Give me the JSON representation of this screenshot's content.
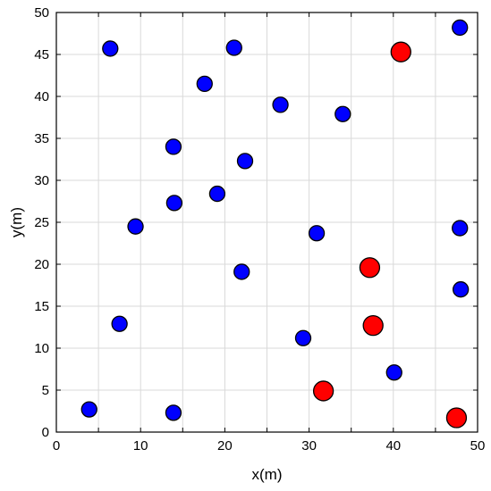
{
  "chart_data": {
    "type": "scatter",
    "xlabel": "x(m)",
    "ylabel": "y(m)",
    "xlim": [
      0,
      50
    ],
    "ylim": [
      0,
      50
    ],
    "x_ticks": [
      0,
      5,
      10,
      15,
      20,
      25,
      30,
      35,
      40,
      45,
      50
    ],
    "x_tick_labels": [
      "0",
      "10",
      "20",
      "30",
      "40",
      "50"
    ],
    "x_tick_label_values": [
      0,
      10,
      20,
      30,
      40,
      50
    ],
    "y_ticks": [
      0,
      5,
      10,
      15,
      20,
      25,
      30,
      35,
      40,
      45,
      50
    ],
    "y_tick_labels": [
      "0",
      "5",
      "10",
      "15",
      "20",
      "25",
      "30",
      "35",
      "40",
      "45",
      "50"
    ],
    "grid": true,
    "series": [
      {
        "color": "#0000ff",
        "points": [
          [
            6.4,
            45.7
          ],
          [
            21.1,
            45.8
          ],
          [
            17.6,
            41.5
          ],
          [
            26.6,
            39.0
          ],
          [
            34.0,
            37.9
          ],
          [
            47.9,
            48.2
          ],
          [
            13.9,
            34.0
          ],
          [
            22.4,
            32.3
          ],
          [
            19.1,
            28.4
          ],
          [
            14.0,
            27.3
          ],
          [
            9.4,
            24.5
          ],
          [
            30.9,
            23.7
          ],
          [
            47.9,
            24.3
          ],
          [
            22.0,
            19.1
          ],
          [
            48.0,
            17.0
          ],
          [
            7.5,
            12.9
          ],
          [
            29.3,
            11.2
          ],
          [
            40.1,
            7.1
          ],
          [
            3.9,
            2.7
          ],
          [
            13.9,
            2.3
          ]
        ]
      },
      {
        "color": "#ff0000",
        "points": [
          [
            40.9,
            45.3
          ],
          [
            37.2,
            19.6
          ],
          [
            37.6,
            12.7
          ],
          [
            31.7,
            4.9
          ],
          [
            47.5,
            1.7
          ]
        ]
      }
    ]
  }
}
